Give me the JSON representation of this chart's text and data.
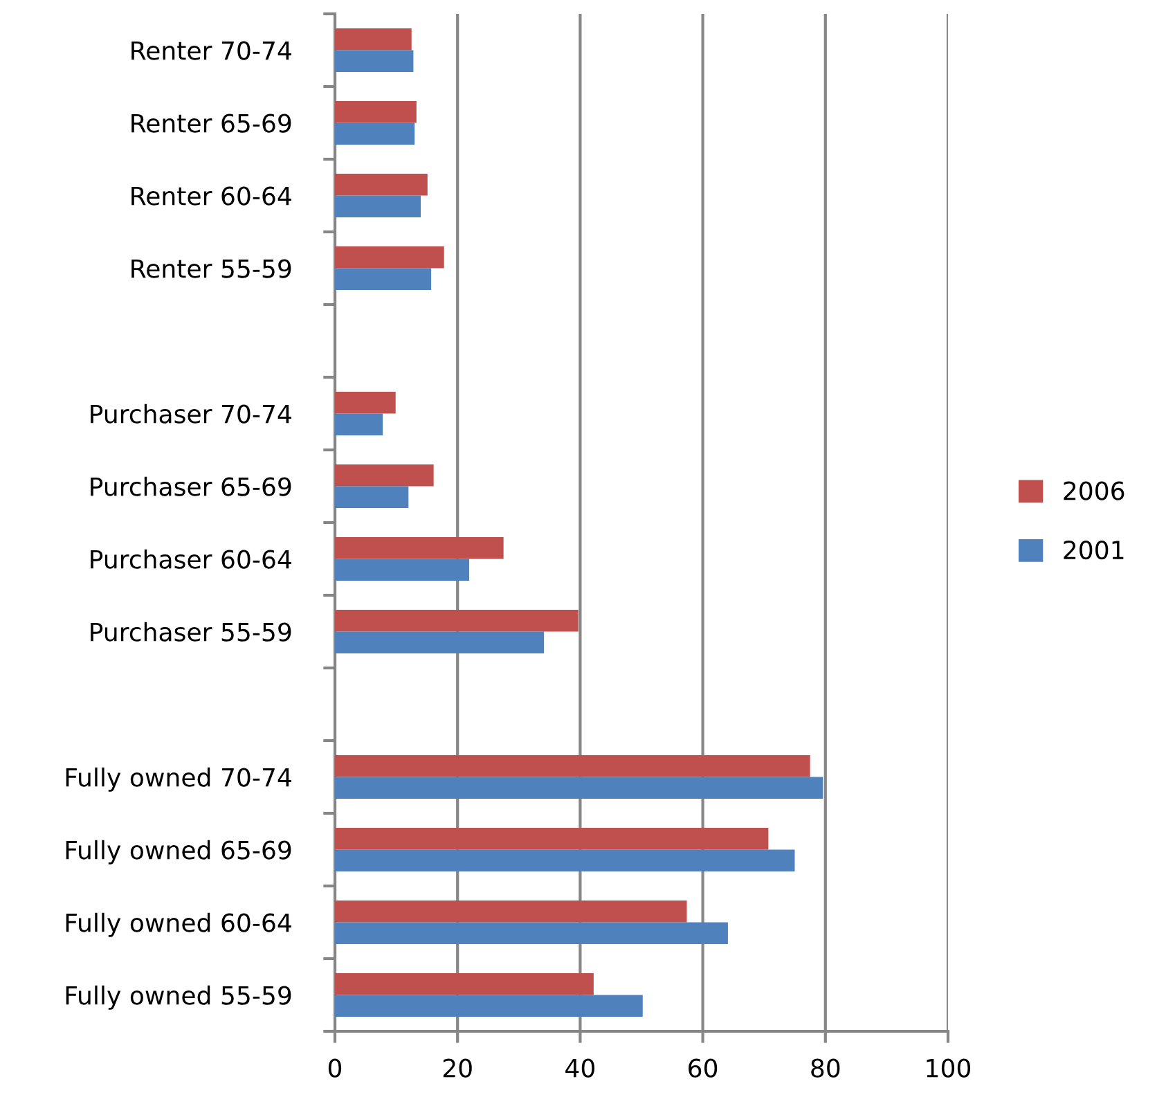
{
  "chart_data": {
    "type": "bar",
    "orientation": "horizontal",
    "categories": [
      "Renter 70-74",
      "Renter 65-69",
      "Renter 60-64",
      "Renter 55-59",
      null,
      "Purchaser 70-74",
      "Purchaser 65-69",
      "Purchaser 60-64",
      "Purchaser 55-59",
      null,
      "Fully owned 70-74",
      "Fully owned 65-69",
      "Fully owned 60-64",
      "Fully owned 55-59"
    ],
    "series": [
      {
        "name": "2006",
        "color": "#c0504d",
        "values": [
          12.5,
          13.3,
          15.1,
          17.8,
          null,
          9.9,
          16.1,
          27.5,
          39.7,
          null,
          77.5,
          70.7,
          57.4,
          42.2
        ]
      },
      {
        "name": "2001",
        "color": "#4f81bd",
        "values": [
          12.8,
          13.0,
          14.0,
          15.7,
          null,
          7.8,
          12.0,
          21.9,
          34.1,
          null,
          79.6,
          75.0,
          64.1,
          50.2
        ]
      }
    ],
    "xlim": [
      0,
      100
    ],
    "xticks": [
      0,
      20,
      40,
      60,
      80,
      100
    ],
    "grid": "x",
    "legend": "right"
  }
}
